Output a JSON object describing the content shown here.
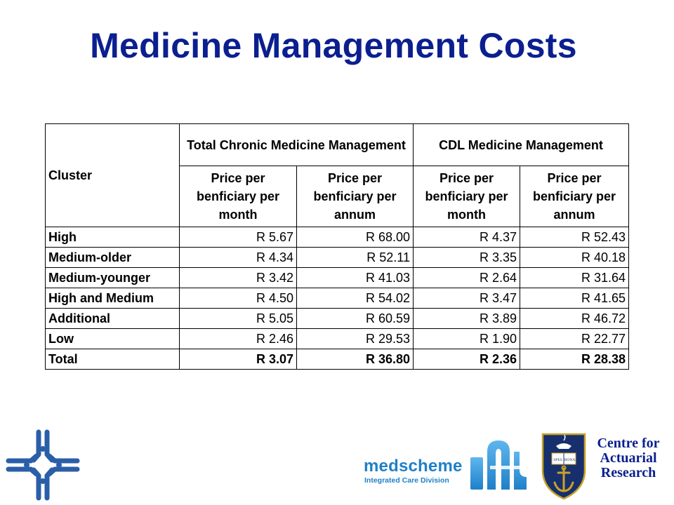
{
  "title": "Medicine Management Costs",
  "table": {
    "cluster_header": "Cluster",
    "groups": [
      "Total Chronic Medicine Management",
      "CDL Medicine Management"
    ],
    "subheaders": [
      "Price per benficiary per month",
      "Price per benficiary per annum",
      "Price per benficiary per month",
      "Price per benficiary per annum"
    ],
    "rows": [
      {
        "name": "High",
        "values": [
          "R 5.67",
          "R 68.00",
          "R 4.37",
          "R 52.43"
        ]
      },
      {
        "name": "Medium-older",
        "values": [
          "R 4.34",
          "R 52.11",
          "R 3.35",
          "R 40.18"
        ]
      },
      {
        "name": "Medium-younger",
        "values": [
          "R 3.42",
          "R 41.03",
          "R 2.64",
          "R 31.64"
        ]
      },
      {
        "name": "High and Medium",
        "values": [
          "R 4.50",
          "R 54.02",
          "R 3.47",
          "R 41.65"
        ]
      },
      {
        "name": "Additional",
        "values": [
          "R 5.05",
          "R 60.59",
          "R 3.89",
          "R 46.72"
        ]
      },
      {
        "name": "Low",
        "values": [
          "R 2.46",
          "R 29.53",
          "R 1.90",
          "R 22.77"
        ]
      },
      {
        "name": "Total",
        "values": [
          "R 3.07",
          "R 36.80",
          "R 2.36",
          "R 28.38"
        ]
      }
    ]
  },
  "logos": {
    "medscheme_name": "medscheme",
    "medscheme_division": "Integrated Care Division",
    "crest_motto_left": "SPES",
    "crest_motto_right": "BONA",
    "centre_line1": "Centre for",
    "centre_line2": "Actuarial",
    "centre_line3": "Research"
  },
  "colors": {
    "title": "#0b1f8f",
    "logo_blue": "#2b5ea8",
    "medscheme_blue": "#1f80c8"
  }
}
